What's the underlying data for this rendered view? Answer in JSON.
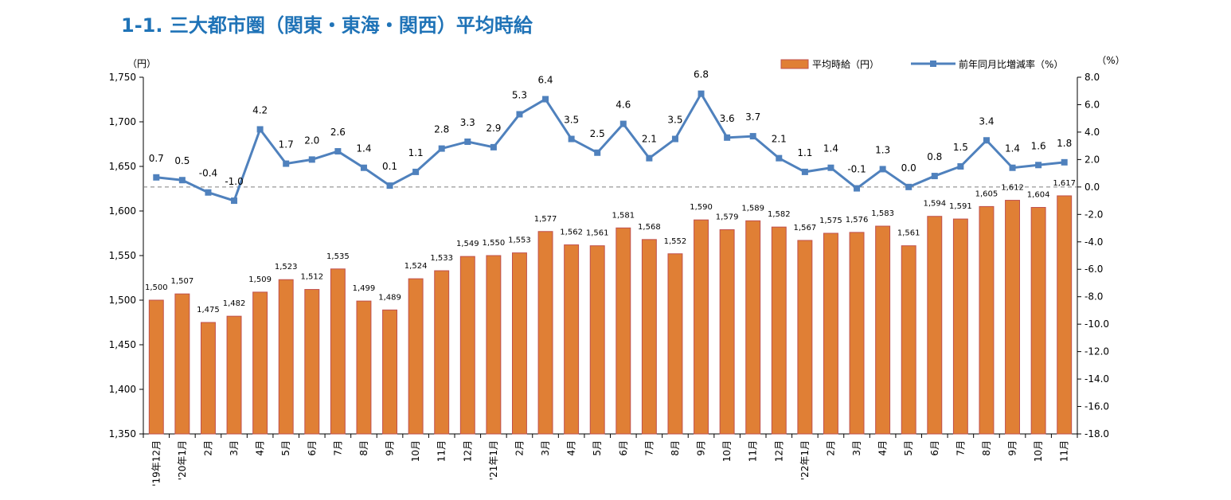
{
  "title": "1-1. 三大都市圏（関東・東海・関西）平均時給",
  "chart_data": {
    "type": "bar+line",
    "left_unit": "（円）",
    "right_unit": "（%）",
    "left_ylim": [
      1350,
      1750
    ],
    "left_ticks": [
      "1,350",
      "1,400",
      "1,450",
      "1,500",
      "1,550",
      "1,600",
      "1,650",
      "1,700",
      "1,750"
    ],
    "right_ylim": [
      -18.0,
      8.0
    ],
    "right_ticks": [
      "-18.0",
      "-16.0",
      "-14.0",
      "-12.0",
      "-10.0",
      "-8.0",
      "-6.0",
      "-4.0",
      "-2.0",
      "0.0",
      "2.0",
      "4.0",
      "6.0",
      "8.0"
    ],
    "categories": [
      "'19年12月",
      "'20年1月",
      "2月",
      "3月",
      "4月",
      "5月",
      "6月",
      "7月",
      "8月",
      "9月",
      "10月",
      "11月",
      "12月",
      "'21年1月",
      "2月",
      "3月",
      "4月",
      "5月",
      "6月",
      "7月",
      "8月",
      "9月",
      "10月",
      "11月",
      "12月",
      "'22年1月",
      "2月",
      "3月",
      "4月",
      "5月",
      "6月",
      "7月",
      "8月",
      "9月",
      "10月",
      "11月"
    ],
    "bar_series": {
      "name": "平均時給（円）",
      "color": "#E07F35",
      "values": [
        1500,
        1507,
        1475,
        1482,
        1509,
        1523,
        1512,
        1535,
        1499,
        1489,
        1524,
        1533,
        1549,
        1550,
        1553,
        1577,
        1562,
        1561,
        1581,
        1568,
        1552,
        1590,
        1579,
        1589,
        1582,
        1567,
        1575,
        1576,
        1583,
        1561,
        1594,
        1591,
        1605,
        1612,
        1604,
        1617
      ],
      "labels": [
        "1,500",
        "1,507",
        "1,475",
        "1,482",
        "1,509",
        "1,523",
        "1,512",
        "1,535",
        "1,499",
        "1,489",
        "1,524",
        "1,533",
        "1,549",
        "1,550",
        "1,553",
        "1,577",
        "1,562",
        "1,561",
        "1,581",
        "1,568",
        "1,552",
        "1,590",
        "1,579",
        "1,589",
        "1,582",
        "1,567",
        "1,575",
        "1,576",
        "1,583",
        "1,561",
        "1,594",
        "1,591",
        "1,605",
        "1,612",
        "1,604",
        "1,617"
      ]
    },
    "line_series": {
      "name": "前年同月比増減率（%）",
      "color": "#4F81BD",
      "values": [
        0.7,
        0.5,
        -0.4,
        -1.0,
        4.2,
        1.7,
        2.0,
        2.6,
        1.4,
        0.1,
        1.1,
        2.8,
        3.3,
        2.9,
        5.3,
        6.4,
        3.5,
        2.5,
        4.6,
        2.1,
        3.5,
        6.8,
        3.6,
        3.7,
        2.1,
        1.1,
        1.4,
        -0.1,
        1.3,
        0.0,
        0.8,
        1.5,
        3.4,
        1.4,
        1.6,
        1.8
      ],
      "labels": [
        "0.7",
        "0.5",
        "-0.4",
        "-1.0",
        "4.2",
        "1.7",
        "2.0",
        "2.6",
        "1.4",
        "0.1",
        "1.1",
        "2.8",
        "3.3",
        "2.9",
        "5.3",
        "6.4",
        "3.5",
        "2.5",
        "4.6",
        "2.1",
        "3.5",
        "6.8",
        "3.6",
        "3.7",
        "2.1",
        "1.1",
        "1.4",
        "-0.1",
        "1.3",
        "0.0",
        "0.8",
        "1.5",
        "3.4",
        "1.4",
        "1.6",
        "1.8"
      ]
    },
    "zero_line": "dashed",
    "legend_position": "top-right",
    "grid": false
  }
}
